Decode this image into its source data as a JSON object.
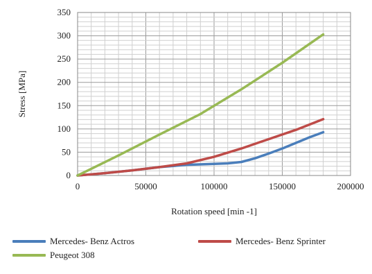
{
  "chart_data": {
    "type": "line",
    "xlabel": "Rotation speed [min -1]",
    "ylabel": "Stress [MPa]",
    "xlim": [
      0,
      200000
    ],
    "ylim": [
      0,
      350
    ],
    "x_ticks": [
      "0",
      "50000",
      "100000",
      "150000",
      "200000"
    ],
    "y_ticks": [
      "0",
      "50",
      "100",
      "150",
      "200",
      "250",
      "300",
      "350"
    ],
    "grid": true,
    "legend_position": "bottom",
    "series": [
      {
        "name": "Mercedes- Benz Actros",
        "color": "#4a7ebb",
        "x": [
          0,
          20000,
          40000,
          60000,
          80000,
          100000,
          110000,
          120000,
          130000,
          140000,
          150000,
          160000,
          170000,
          180000
        ],
        "y": [
          0,
          5,
          11,
          18,
          23,
          25,
          26,
          29,
          37,
          47,
          58,
          70,
          82,
          93
        ]
      },
      {
        "name": "Mercedes- Benz Sprinter",
        "color": "#be4b48",
        "x": [
          0,
          20000,
          40000,
          60000,
          80000,
          100000,
          120000,
          140000,
          160000,
          180000
        ],
        "y": [
          0,
          5,
          11,
          18,
          26,
          40,
          58,
          78,
          98,
          121
        ]
      },
      {
        "name": "Peugeot 308",
        "color": "#98b954",
        "x": [
          0,
          30000,
          60000,
          90000,
          120000,
          150000,
          180000
        ],
        "y": [
          0,
          43,
          88,
          132,
          185,
          242,
          303
        ]
      }
    ]
  }
}
